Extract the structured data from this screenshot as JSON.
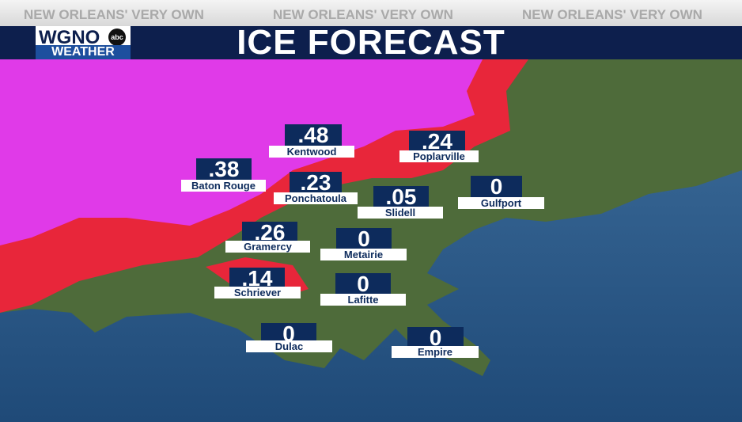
{
  "header": {
    "tagline": [
      "NEW ORLEANS' VERY OWN",
      "NEW ORLEANS' VERY OWN",
      "NEW ORLEANS' VERY OWN"
    ],
    "logo": {
      "station": "WGNO",
      "network": "abc",
      "brand": "WEATHER"
    },
    "title": "ICE FORECAST"
  },
  "locations": [
    {
      "name": "Kentwood",
      "amount": ".48"
    },
    {
      "name": "Poplarville",
      "amount": ".24"
    },
    {
      "name": "Baton Rouge",
      "amount": ".38"
    },
    {
      "name": "Ponchatoula",
      "amount": ".23"
    },
    {
      "name": "Slidell",
      "amount": ".05"
    },
    {
      "name": "Gulfport",
      "amount": "0"
    },
    {
      "name": "Gramercy",
      "amount": ".26"
    },
    {
      "name": "Metairie",
      "amount": "0"
    },
    {
      "name": "Schriever",
      "amount": ".14"
    },
    {
      "name": "Lafitte",
      "amount": "0"
    },
    {
      "name": "Dulac",
      "amount": "0"
    },
    {
      "name": "Empire",
      "amount": "0"
    }
  ]
}
